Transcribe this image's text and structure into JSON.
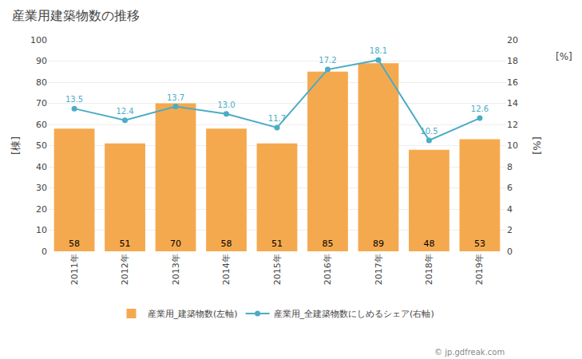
{
  "chart_data": {
    "type": "bar",
    "title": "産業用建築物数の推移",
    "categories": [
      "2011年",
      "2012年",
      "2013年",
      "2014年",
      "2015年",
      "2016年",
      "2017年",
      "2018年",
      "2019年"
    ],
    "series": [
      {
        "name": "産業用_建築物数(左軸)",
        "type": "bar",
        "color": "#f5a94e",
        "values": [
          58,
          51,
          70,
          58,
          51,
          85,
          89,
          48,
          53
        ]
      },
      {
        "name": "産業用_全建築物数にしめるシェア(右軸)",
        "type": "line",
        "axis": "y2",
        "color": "#4bacc6",
        "marker": "circle",
        "values": [
          13.5,
          12.4,
          13.7,
          13.0,
          11.7,
          17.2,
          18.1,
          10.5,
          12.6
        ],
        "value_labels": [
          "13.5",
          "12.4",
          "13.7",
          "13.0",
          "11.7",
          "17.2",
          "18.1",
          "10.5",
          "12.6"
        ]
      }
    ],
    "ylabel": "[棟]",
    "y2label": "[%]",
    "ylim": [
      0,
      100
    ],
    "yticks": [
      0,
      10,
      20,
      30,
      40,
      50,
      60,
      70,
      80,
      90,
      100
    ],
    "y2lim": [
      0,
      20
    ],
    "y2ticks": [
      0,
      2,
      4,
      6,
      8,
      10,
      12,
      14,
      16,
      18,
      20
    ],
    "grid": true,
    "data_labels": true,
    "legend": "bottom",
    "annotations": [
      "[%]",
      "© jp.gdfreak.com"
    ]
  }
}
